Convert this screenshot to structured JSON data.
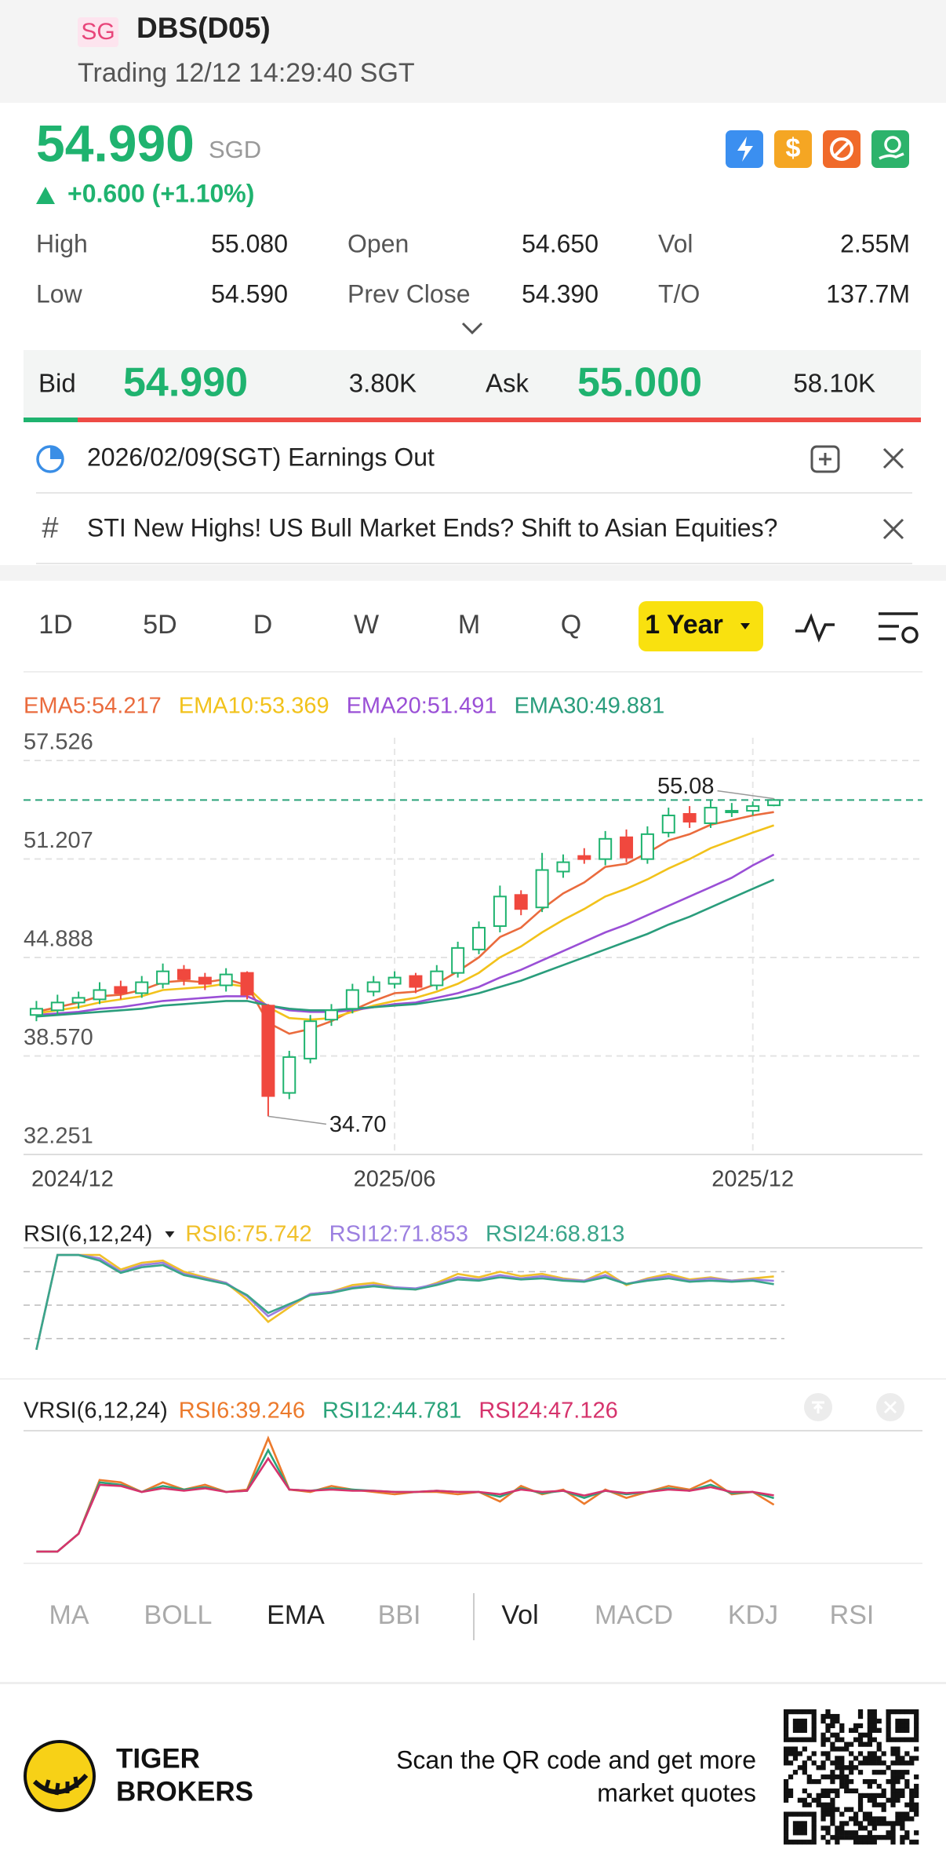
{
  "header": {
    "market": "SG",
    "title": "DBS(D05)",
    "status": "Trading 12/12 14:29:40 SGT"
  },
  "quote": {
    "price": "54.990",
    "currency": "SGD",
    "change": "+0.600 (+1.10%)"
  },
  "stats": [
    [
      "High",
      "55.080",
      "Open",
      "54.650",
      "Vol",
      "2.55M"
    ],
    [
      "Low",
      "54.590",
      "Prev Close",
      "54.390",
      "T/O",
      "137.7M"
    ]
  ],
  "order_book": {
    "bid_label": "Bid",
    "bid": "54.990",
    "bid_size": "3.80K",
    "ask_label": "Ask",
    "ask": "55.000",
    "ask_size": "58.10K"
  },
  "notices": [
    "2026/02/09(SGT) Earnings Out",
    "STI New Highs! US Bull Market Ends? Shift to Asian Equities?"
  ],
  "period_tabs": [
    "1D",
    "5D",
    "D",
    "W",
    "M",
    "Q",
    "1 Year"
  ],
  "indicator_tabs": [
    "MA",
    "BOLL",
    "EMA",
    "BBI",
    "Vol",
    "MACD",
    "KDJ",
    "RSI"
  ],
  "footer": {
    "brand_line1": "TIGER",
    "brand_line2": "BROKERS",
    "cta_line1": "Scan the QR code and get more",
    "cta_line2": "market quotes"
  },
  "chart_data": [
    {
      "type": "candlestick",
      "categories": [
        "2024/12",
        null,
        null,
        null,
        null,
        null,
        null,
        null,
        null,
        null,
        null,
        null,
        null,
        null,
        null,
        null,
        null,
        "2025/06",
        null,
        null,
        null,
        null,
        null,
        null,
        null,
        null,
        null,
        null,
        null,
        null,
        null,
        null,
        null,
        null,
        "2025/12",
        null
      ],
      "open": [
        41.2,
        41.5,
        42.0,
        42.2,
        43.0,
        42.6,
        43.2,
        44.1,
        43.6,
        43.1,
        43.9,
        41.8,
        36.2,
        38.4,
        40.9,
        41.6,
        42.7,
        43.2,
        43.7,
        43.1,
        43.9,
        45.4,
        46.9,
        48.9,
        48.1,
        50.4,
        51.4,
        51.2,
        52.6,
        51.2,
        52.9,
        54.1,
        53.5,
        54.2,
        54.3,
        54.65
      ],
      "high": [
        42.1,
        42.5,
        42.7,
        43.3,
        43.4,
        43.7,
        44.5,
        44.4,
        43.9,
        44.2,
        44.0,
        41.9,
        38.9,
        41.2,
        41.9,
        43.2,
        43.7,
        44.0,
        43.9,
        44.4,
        45.9,
        47.2,
        49.5,
        49.2,
        51.6,
        51.5,
        51.9,
        53.0,
        53.1,
        53.3,
        54.5,
        54.6,
        55.0,
        54.8,
        54.9,
        55.08
      ],
      "low": [
        40.8,
        41.2,
        41.6,
        41.9,
        42.2,
        42.3,
        42.9,
        43.1,
        42.8,
        42.7,
        42.2,
        34.7,
        35.8,
        38.1,
        40.5,
        41.3,
        42.4,
        42.9,
        42.6,
        42.8,
        43.6,
        45.1,
        46.5,
        47.6,
        47.8,
        50.0,
        50.9,
        50.8,
        51.0,
        50.9,
        52.6,
        53.2,
        53.2,
        53.9,
        54.0,
        54.59
      ],
      "close": [
        41.6,
        42.0,
        42.3,
        42.8,
        42.6,
        43.3,
        44.0,
        43.5,
        43.2,
        43.8,
        42.5,
        36.0,
        38.5,
        40.8,
        41.5,
        42.8,
        43.3,
        43.6,
        43.0,
        44.0,
        45.5,
        46.8,
        48.8,
        48.0,
        50.5,
        51.0,
        51.2,
        52.5,
        51.3,
        52.8,
        54.0,
        53.6,
        54.5,
        54.3,
        54.6,
        54.99
      ],
      "up_color": "#1fb36f",
      "down_color": "#f0483e",
      "series": [
        {
          "name": "EMA5:54.217",
          "color": "#ea6b3d",
          "values": [
            41.4,
            41.7,
            42.0,
            42.4,
            42.5,
            42.8,
            43.3,
            43.4,
            43.3,
            43.5,
            43.1,
            40.7,
            40.0,
            40.3,
            40.8,
            41.5,
            42.1,
            42.6,
            42.7,
            43.2,
            44.0,
            44.9,
            46.2,
            46.8,
            48.0,
            49.0,
            49.7,
            50.7,
            50.9,
            51.6,
            52.4,
            52.8,
            53.4,
            53.7,
            54.0,
            54.217
          ]
        },
        {
          "name": "EMA10:53.369",
          "color": "#f2c21b",
          "values": [
            41.3,
            41.5,
            41.7,
            42.0,
            42.2,
            42.4,
            42.8,
            42.9,
            43.0,
            43.2,
            43.0,
            41.7,
            41.0,
            40.9,
            41.0,
            41.4,
            41.8,
            42.1,
            42.3,
            42.7,
            43.2,
            43.9,
            44.9,
            45.6,
            46.5,
            47.3,
            48.0,
            48.8,
            49.3,
            49.9,
            50.6,
            51.2,
            51.9,
            52.4,
            52.9,
            53.369
          ]
        },
        {
          "name": "EMA20:51.491",
          "color": "#9a4fd6",
          "values": [
            41.2,
            41.3,
            41.4,
            41.6,
            41.7,
            41.9,
            42.1,
            42.2,
            42.3,
            42.4,
            42.4,
            41.8,
            41.5,
            41.4,
            41.4,
            41.5,
            41.7,
            41.9,
            42.0,
            42.3,
            42.6,
            43.0,
            43.6,
            44.1,
            44.7,
            45.3,
            45.9,
            46.5,
            47.0,
            47.6,
            48.2,
            48.8,
            49.4,
            50.0,
            50.8,
            51.491
          ]
        },
        {
          "name": "EMA30:49.881",
          "color": "#2a9d7c",
          "values": [
            41.1,
            41.2,
            41.3,
            41.4,
            41.5,
            41.6,
            41.8,
            41.9,
            42.0,
            42.1,
            42.1,
            41.8,
            41.6,
            41.5,
            41.5,
            41.6,
            41.7,
            41.8,
            41.9,
            42.1,
            42.3,
            42.6,
            43.0,
            43.4,
            43.9,
            44.4,
            44.9,
            45.4,
            45.9,
            46.4,
            47.0,
            47.5,
            48.1,
            48.7,
            49.3,
            49.881
          ]
        }
      ],
      "ylim": [
        32.251,
        57.526
      ],
      "yticks": [
        57.526,
        51.207,
        44.888,
        {
          "value": 38.57,
          "label": "38.570"
        },
        32.251
      ],
      "grid": true,
      "high_label": 55.08,
      "low_label": {
        "value": 34.7,
        "label": "34.70"
      }
    },
    {
      "type": "line",
      "title": "RSI(6,12,24)",
      "ylim": [
        0,
        100
      ],
      "ref_lines": [
        20,
        50,
        80
      ],
      "series": [
        {
          "name": "RSI6:75.742",
          "color": "#f0c02a",
          "values": [
            10,
            95,
            95,
            95,
            82,
            88,
            90,
            80,
            75,
            70,
            55,
            35,
            48,
            60,
            62,
            68,
            70,
            66,
            64,
            70,
            78,
            75,
            80,
            76,
            78,
            74,
            72,
            80,
            68,
            74,
            78,
            73,
            75,
            72,
            74,
            75.742
          ]
        },
        {
          "name": "RSI12:71.853",
          "color": "#9b7fe0",
          "values": [
            10,
            95,
            95,
            92,
            80,
            86,
            88,
            78,
            74,
            70,
            58,
            40,
            50,
            60,
            62,
            66,
            68,
            66,
            65,
            69,
            75,
            73,
            77,
            74,
            76,
            73,
            72,
            77,
            69,
            73,
            76,
            72,
            74,
            72,
            73,
            71.853
          ]
        },
        {
          "name": "RSI24:68.813",
          "color": "#3aa58a",
          "values": [
            10,
            95,
            95,
            90,
            79,
            84,
            86,
            77,
            73,
            69,
            59,
            43,
            51,
            59,
            61,
            65,
            67,
            65,
            64,
            68,
            73,
            72,
            75,
            73,
            74,
            72,
            71,
            75,
            69,
            72,
            74,
            71,
            72,
            71,
            72,
            68.813
          ]
        }
      ]
    },
    {
      "type": "line",
      "title": "VRSI(6,12,24)",
      "ylim": [
        0,
        100
      ],
      "series": [
        {
          "name": "RSI6:39.246",
          "color": "#ec7a2c",
          "values": [
            0,
            0,
            15,
            60,
            58,
            50,
            58,
            52,
            56,
            50,
            52,
            95,
            52,
            50,
            55,
            52,
            50,
            48,
            50,
            50,
            48,
            50,
            42,
            55,
            48,
            52,
            40,
            52,
            45,
            50,
            55,
            52,
            60,
            48,
            50,
            39.246
          ]
        },
        {
          "name": "RSI12:44.781",
          "color": "#2aa37a",
          "values": [
            0,
            0,
            15,
            58,
            56,
            50,
            55,
            52,
            54,
            50,
            51,
            85,
            52,
            51,
            53,
            52,
            51,
            50,
            50,
            51,
            50,
            50,
            46,
            53,
            49,
            51,
            45,
            51,
            48,
            50,
            53,
            51,
            56,
            49,
            50,
            44.781
          ]
        },
        {
          "name": "RSI24:47.126",
          "color": "#d6336c",
          "values": [
            0,
            0,
            15,
            56,
            55,
            50,
            53,
            51,
            53,
            50,
            51,
            78,
            52,
            51,
            52,
            51,
            51,
            50,
            50,
            51,
            50,
            50,
            48,
            52,
            50,
            51,
            47,
            51,
            49,
            50,
            52,
            51,
            54,
            50,
            50,
            47.126
          ]
        }
      ]
    }
  ]
}
